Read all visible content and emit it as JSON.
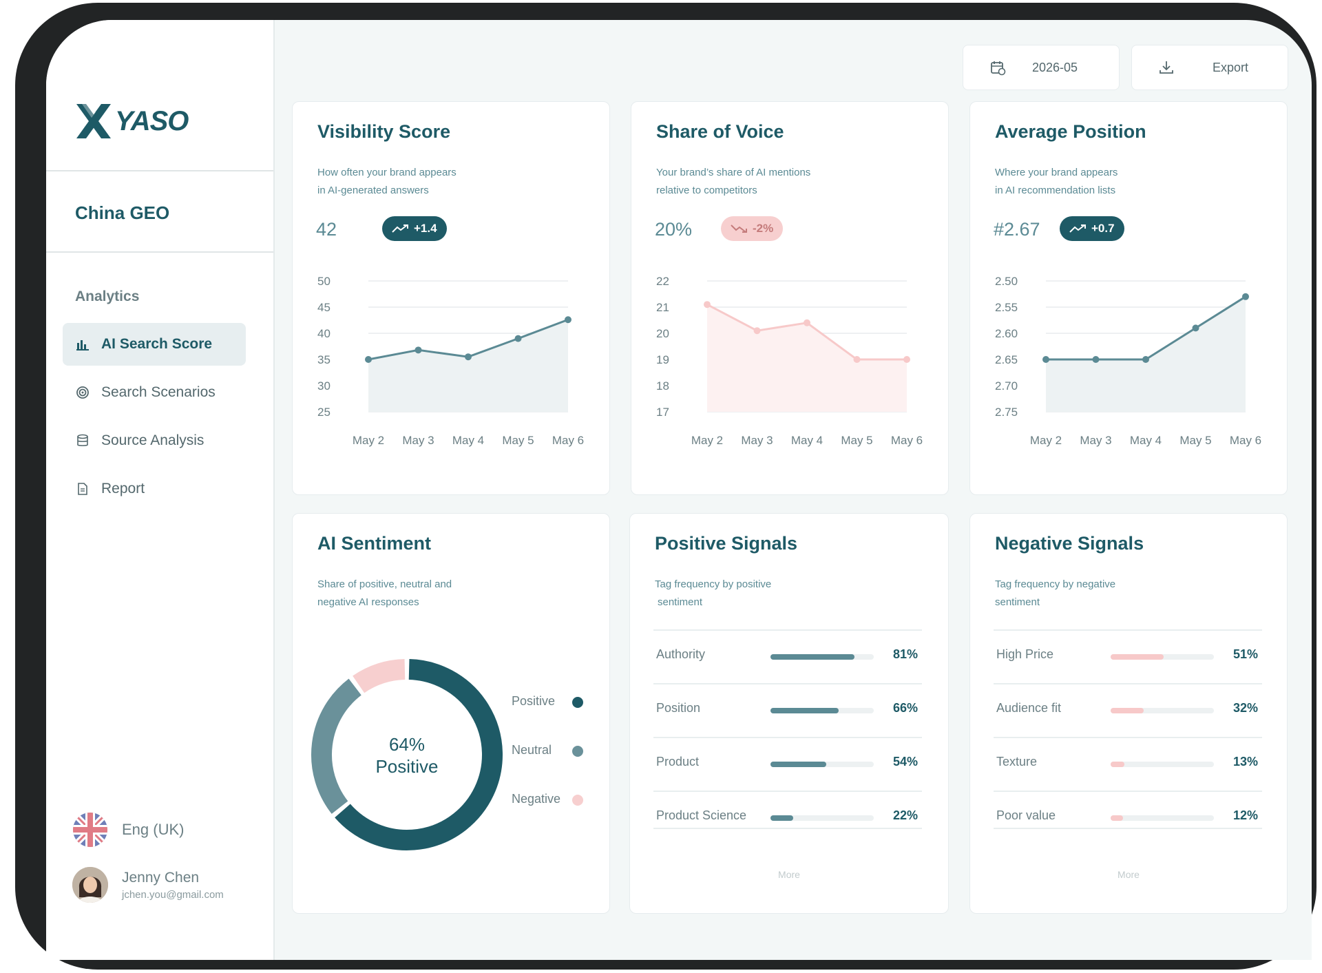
{
  "brand": {
    "name": "YASO"
  },
  "workspace": "China GEO",
  "nav": {
    "section": "Analytics",
    "items": [
      {
        "label": "AI Search Score",
        "icon": "bar-chart-icon",
        "active": true
      },
      {
        "label": "Search Scenarios",
        "icon": "target-icon",
        "active": false
      },
      {
        "label": "Source Analysis",
        "icon": "database-icon",
        "active": false
      },
      {
        "label": "Report",
        "icon": "document-icon",
        "active": false
      }
    ]
  },
  "language": "Eng (UK)",
  "user": {
    "name": "Jenny Chen",
    "email": "jchen.you@gmail.com"
  },
  "toolbar": {
    "date": "2026-05",
    "export_label": "Export"
  },
  "colors": {
    "primary": "#1e5a66",
    "teal": "#5b8a94",
    "pink": "#f7c9c9",
    "pink_dark": "#c47b7b"
  },
  "cards": {
    "visibility": {
      "title": "Visibility Score",
      "subtitle_1": "How often your brand appears",
      "subtitle_2": "in AI-generated answers",
      "value": "42",
      "delta": "+1.4"
    },
    "sov": {
      "title": "Share of Voice",
      "subtitle_1": "Your brand’s share of AI mentions",
      "subtitle_2": "relative to competitors",
      "value": "20%",
      "delta": "-2%"
    },
    "position": {
      "title": "Average Position",
      "subtitle_1": "Where your brand appears",
      "subtitle_2": "in AI recommendation lists",
      "value": "#2.67",
      "delta": "+0.7"
    },
    "sentiment": {
      "title": "AI Sentiment",
      "subtitle_1": "Share of positive, neutral and",
      "subtitle_2": "negative AI responses",
      "center_value": "64%",
      "center_label": "Positive"
    },
    "positive_signals": {
      "title": "Positive Signals",
      "subtitle_1": "Tag frequency by positive",
      "subtitle_2": "sentiment",
      "more": "More"
    },
    "negative_signals": {
      "title": "Negative Signals",
      "subtitle_1": "Tag frequency by negative",
      "subtitle_2": "sentiment",
      "more": "More"
    }
  },
  "chart_data": [
    {
      "type": "area",
      "title": "Visibility Score",
      "categories": [
        "May 2",
        "May 3",
        "May 4",
        "May 5",
        "May 6"
      ],
      "values": [
        35,
        36.8,
        35.5,
        39,
        42.6
      ],
      "ylim": [
        25,
        50
      ],
      "yticks": [
        50,
        45,
        40,
        35,
        30,
        25
      ],
      "grid": true,
      "color": "#5b8a94"
    },
    {
      "type": "area",
      "title": "Share of Voice",
      "categories": [
        "May 2",
        "May 3",
        "May 4",
        "May 5",
        "May 6"
      ],
      "values": [
        21.1,
        20.1,
        20.4,
        19,
        19
      ],
      "ylim": [
        17,
        22
      ],
      "yticks": [
        22,
        21,
        20,
        19,
        18,
        17
      ],
      "grid": true,
      "color": "#f7c9c9"
    },
    {
      "type": "area",
      "title": "Average Position",
      "categories": [
        "May 2",
        "May 3",
        "May 4",
        "May 5",
        "May 6"
      ],
      "values": [
        2.65,
        2.65,
        2.65,
        2.59,
        2.53
      ],
      "ylim": [
        2.5,
        2.75
      ],
      "yticks": [
        "2.50",
        "2.55",
        "2.60",
        "2.65",
        "2.70",
        "2.75"
      ],
      "y_inverted": true,
      "grid": true,
      "color": "#5b8a94"
    },
    {
      "type": "pie",
      "title": "AI Sentiment",
      "labels": [
        "Positive",
        "Neutral",
        "Negative"
      ],
      "values": [
        64,
        26,
        10
      ],
      "colors": [
        "#1e5a66",
        "#6a919a",
        "#f7cfcf"
      ]
    },
    {
      "type": "bar",
      "title": "Positive Signals",
      "categories": [
        "Authority",
        "Position",
        "Product",
        "Product Science"
      ],
      "values": [
        81,
        66,
        54,
        22
      ],
      "labels": [
        "81%",
        "66%",
        "54%",
        "22%"
      ],
      "color": "#5b8a94"
    },
    {
      "type": "bar",
      "title": "Negative Signals",
      "categories": [
        "High Price",
        "Audience fit",
        "Texture",
        "Poor value"
      ],
      "values": [
        51,
        32,
        13,
        12
      ],
      "labels": [
        "51%",
        "32%",
        "13%",
        "12%"
      ],
      "color": "#f7c9c9"
    }
  ]
}
